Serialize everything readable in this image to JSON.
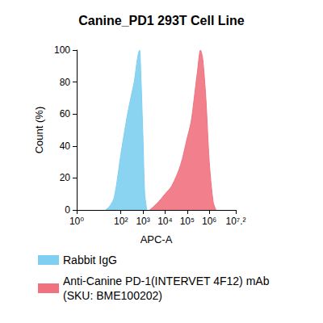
{
  "chart_data": {
    "type": "area",
    "title": "Canine_PD1 293T Cell Line",
    "x_label": "APC-A",
    "y_label": "Count (%)",
    "log": "x",
    "grid": false,
    "legend": "bottom",
    "x": [
      20,
      30,
      50,
      100,
      150,
      200,
      300,
      400,
      500,
      600,
      700,
      800,
      1000,
      1200,
      1500,
      2000,
      3000,
      5000,
      10000,
      20000,
      50000,
      100000,
      150000,
      200000,
      300000,
      400000,
      500000,
      700000,
      1000000,
      1500000,
      2000000
    ],
    "series": [
      {
        "name": "Rabbit IgG",
        "color": "#7ecff0",
        "values": [
          0,
          2,
          8,
          35,
          50,
          60,
          72,
          80,
          90,
          97,
          100,
          85,
          45,
          10,
          0,
          null,
          null,
          null,
          null,
          null,
          null,
          null,
          null,
          null,
          null,
          null,
          null,
          null,
          null,
          null,
          null
        ]
      },
      {
        "name": "Anti-Canine PD-1(INTERVET 4F12) mAb (SKU: BME100202)",
        "color": "#f0727f",
        "values": [
          null,
          null,
          null,
          null,
          null,
          null,
          null,
          null,
          null,
          null,
          null,
          null,
          null,
          null,
          null,
          0,
          2,
          5,
          10,
          15,
          28,
          45,
          55,
          68,
          88,
          100,
          95,
          70,
          30,
          5,
          0
        ]
      }
    ],
    "xlim": [
      1,
      15848932
    ],
    "xticks": [
      {
        "value": 1,
        "label": "10⁰"
      },
      {
        "value": 100,
        "label": "10²"
      },
      {
        "value": 1000,
        "label": "10³"
      },
      {
        "value": 10000,
        "label": "10⁴"
      },
      {
        "value": 100000,
        "label": "10⁵"
      },
      {
        "value": 1000000,
        "label": "10⁶"
      },
      {
        "value": 15848932,
        "label": "10⁷.²"
      }
    ],
    "ylim": [
      0,
      100
    ],
    "yticks": [
      0,
      20,
      40,
      60,
      80,
      100
    ]
  }
}
